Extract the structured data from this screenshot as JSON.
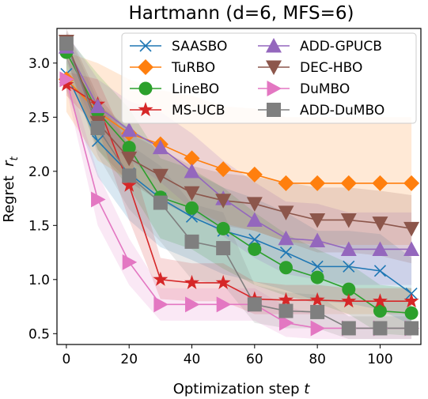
{
  "chart_data": {
    "type": "line",
    "title": "Hartmann (d=6, MFS=6)",
    "xlabel_prefix": "Optimization step ",
    "xlabel_var": "t",
    "ylabel_prefix": "Regret  ",
    "ylabel_var": "r",
    "ylabel_sub": "t",
    "xlim": [
      -3,
      113
    ],
    "ylim": [
      0.4,
      3.32
    ],
    "xticks": [
      0,
      20,
      40,
      60,
      80,
      100
    ],
    "yticks": [
      0.5,
      1.0,
      1.5,
      2.0,
      2.5,
      3.0
    ],
    "ytick_labels": [
      "0.5",
      "1.0",
      "1.5",
      "2.0",
      "2.5",
      "3.0"
    ],
    "grid": false,
    "legend_position": "top-right",
    "x": [
      0,
      10,
      20,
      30,
      40,
      50,
      60,
      70,
      80,
      90,
      100,
      110
    ],
    "series": [
      {
        "name": "SAASBO",
        "color": "#1f77b4",
        "marker": "x",
        "values": [
          2.9,
          2.28,
          1.98,
          1.75,
          1.58,
          1.45,
          1.37,
          1.25,
          1.12,
          1.12,
          1.08,
          0.87
        ],
        "lower": [
          2.75,
          1.95,
          1.55,
          1.3,
          1.18,
          1.05,
          0.98,
          0.9,
          0.8,
          0.78,
          0.72,
          0.58
        ],
        "upper": [
          3.05,
          2.62,
          2.4,
          2.2,
          2.0,
          1.85,
          1.75,
          1.62,
          1.45,
          1.45,
          1.42,
          1.2
        ]
      },
      {
        "name": "TuRBO",
        "color": "#ff7f0e",
        "marker": "D",
        "values": [
          2.85,
          2.55,
          2.35,
          2.25,
          2.12,
          2.02,
          1.97,
          1.89,
          1.89,
          1.89,
          1.89,
          1.89
        ],
        "lower": [
          2.55,
          2.1,
          1.92,
          1.8,
          1.65,
          1.52,
          1.45,
          1.35,
          1.32,
          1.32,
          1.32,
          1.32
        ],
        "upper": [
          3.1,
          3.0,
          2.85,
          2.75,
          2.7,
          2.6,
          2.58,
          2.5,
          2.5,
          2.5,
          2.5,
          2.5
        ]
      },
      {
        "name": "LineBO",
        "color": "#2ca02c",
        "marker": "o",
        "values": [
          3.1,
          2.55,
          2.22,
          1.76,
          1.66,
          1.47,
          1.28,
          1.11,
          1.02,
          0.91,
          0.71,
          0.69
        ],
        "lower": [
          2.95,
          2.2,
          1.85,
          1.38,
          1.28,
          1.1,
          0.95,
          0.85,
          0.78,
          0.68,
          0.5,
          0.48
        ],
        "upper": [
          3.25,
          2.9,
          2.58,
          2.12,
          2.02,
          1.85,
          1.62,
          1.42,
          1.28,
          1.15,
          0.95,
          0.92
        ]
      },
      {
        "name": "MS-UCB",
        "color": "#d62728",
        "marker": "*",
        "values": [
          2.8,
          2.62,
          1.87,
          1.0,
          0.97,
          0.97,
          0.82,
          0.81,
          0.81,
          0.8,
          0.8,
          0.8
        ],
        "lower": [
          2.7,
          2.4,
          1.55,
          0.82,
          0.8,
          0.8,
          0.68,
          0.68,
          0.68,
          0.68,
          0.68,
          0.68
        ],
        "upper": [
          2.92,
          2.85,
          2.2,
          1.2,
          1.15,
          1.15,
          0.98,
          0.95,
          0.95,
          0.92,
          0.92,
          0.92
        ]
      },
      {
        "name": "ADD-GPUCB",
        "color": "#9467bd",
        "marker": "^",
        "values": [
          3.15,
          2.6,
          2.38,
          2.22,
          2.0,
          1.75,
          1.55,
          1.38,
          1.36,
          1.28,
          1.28,
          1.28
        ],
        "lower": [
          3.0,
          2.35,
          2.1,
          1.9,
          1.65,
          1.4,
          1.2,
          1.05,
          1.0,
          0.95,
          0.95,
          0.95
        ],
        "upper": [
          3.28,
          2.85,
          2.65,
          2.55,
          2.35,
          2.1,
          1.9,
          1.72,
          1.7,
          1.62,
          1.62,
          1.62
        ]
      },
      {
        "name": "DEC-HBO",
        "color": "#8c564b",
        "marker": "v",
        "values": [
          3.2,
          2.45,
          2.12,
          1.96,
          1.8,
          1.73,
          1.7,
          1.62,
          1.55,
          1.55,
          1.52,
          1.47
        ],
        "lower": [
          3.05,
          2.2,
          1.9,
          1.72,
          1.58,
          1.5,
          1.45,
          1.35,
          1.25,
          1.25,
          1.22,
          1.15
        ],
        "upper": [
          3.32,
          2.7,
          2.35,
          2.2,
          2.05,
          1.98,
          1.95,
          1.9,
          1.85,
          1.85,
          1.82,
          1.78
        ]
      },
      {
        "name": "DuMBO",
        "color": "#e377c2",
        "marker": ">",
        "values": [
          2.85,
          1.74,
          1.16,
          0.77,
          0.77,
          0.77,
          0.77,
          0.6,
          0.55,
          0.55,
          0.55,
          0.55
        ],
        "lower": [
          2.75,
          1.5,
          0.95,
          0.62,
          0.62,
          0.62,
          0.62,
          0.47,
          0.45,
          0.45,
          0.45,
          0.45
        ],
        "upper": [
          2.95,
          1.98,
          1.38,
          0.92,
          0.92,
          0.92,
          0.92,
          0.75,
          0.68,
          0.68,
          0.68,
          0.68
        ]
      },
      {
        "name": "ADD-DuMBO",
        "color": "#7f7f7f",
        "marker": "s",
        "values": [
          3.18,
          2.4,
          1.96,
          1.71,
          1.35,
          1.29,
          0.77,
          0.71,
          0.7,
          0.55,
          0.55,
          0.55
        ],
        "lower": [
          3.05,
          2.15,
          1.65,
          1.35,
          1.0,
          0.95,
          0.6,
          0.55,
          0.55,
          0.45,
          0.45,
          0.45
        ],
        "upper": [
          3.3,
          2.65,
          2.25,
          2.05,
          1.7,
          1.62,
          0.95,
          0.88,
          0.86,
          0.66,
          0.66,
          0.66
        ]
      }
    ]
  }
}
